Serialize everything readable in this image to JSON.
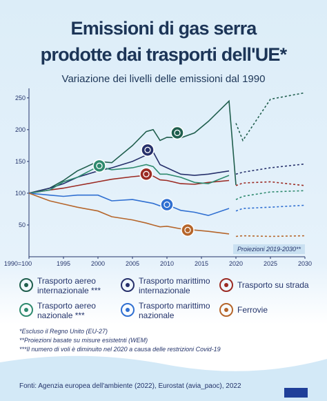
{
  "chart_data": {
    "type": "line",
    "title": [
      "Emissioni di gas serra",
      "prodotte dai trasporti dell'UE*"
    ],
    "subtitle": "Variazione dei livelli delle emissioni dal 1990",
    "x": [
      1990,
      1993,
      1995,
      1997,
      2000,
      2002,
      2005,
      2007,
      2008,
      2009,
      2010,
      2012,
      2014,
      2016,
      2019,
      2020,
      2021,
      2025,
      2030
    ],
    "xlim": [
      1990,
      2030
    ],
    "xticks": [
      {
        "value": 1990,
        "label": "1990=100"
      },
      1995,
      2000,
      2005,
      2010,
      2015,
      2020,
      2025,
      2030
    ],
    "ylim": [
      0,
      265
    ],
    "yticks": [
      50,
      100,
      150,
      200,
      250
    ],
    "projection_label": "Proiezioni 2019-2030**",
    "series": [
      {
        "name": "Trasporto aereo internazionale ***",
        "color": "#1f5e4d",
        "values": [
          100,
          108,
          120,
          135,
          150,
          148,
          175,
          197,
          200,
          183,
          188,
          187,
          195,
          213,
          245,
          113,
          null,
          null,
          null
        ],
        "projection": [
          null,
          null,
          null,
          null,
          null,
          null,
          null,
          null,
          null,
          null,
          null,
          null,
          null,
          null,
          null,
          210,
          183,
          248,
          258
        ]
      },
      {
        "name": "Trasporto marittimo internazionale",
        "color": "#26306b",
        "values": [
          100,
          108,
          115,
          125,
          135,
          140,
          150,
          160,
          165,
          145,
          140,
          130,
          128,
          130,
          135,
          null,
          null,
          null,
          null
        ],
        "projection": [
          null,
          null,
          null,
          null,
          null,
          null,
          null,
          null,
          null,
          null,
          null,
          null,
          null,
          null,
          null,
          130,
          133,
          140,
          146
        ]
      },
      {
        "name": "Trasporto su strada",
        "color": "#9b2a23",
        "values": [
          100,
          105,
          108,
          112,
          118,
          122,
          126,
          128,
          127,
          121,
          120,
          115,
          114,
          117,
          120,
          null,
          null,
          null,
          null
        ],
        "projection": [
          null,
          null,
          null,
          null,
          null,
          null,
          null,
          null,
          null,
          null,
          null,
          null,
          null,
          null,
          null,
          112,
          116,
          118,
          112
        ]
      },
      {
        "name": "Trasporto aereo nazionale ***",
        "color": "#2e8a6e",
        "values": [
          100,
          105,
          118,
          125,
          142,
          137,
          140,
          145,
          142,
          130,
          130,
          125,
          117,
          115,
          128,
          null,
          null,
          null,
          null
        ],
        "projection": [
          null,
          null,
          null,
          null,
          null,
          null,
          null,
          null,
          null,
          null,
          null,
          null,
          null,
          null,
          null,
          90,
          95,
          102,
          104
        ]
      },
      {
        "name": "Trasporto marittimo nazionale",
        "color": "#2f6fd1",
        "values": [
          100,
          97,
          95,
          97,
          97,
          88,
          90,
          86,
          84,
          80,
          82,
          73,
          70,
          65,
          76,
          null,
          null,
          null,
          null
        ],
        "projection": [
          null,
          null,
          null,
          null,
          null,
          null,
          null,
          null,
          null,
          null,
          null,
          null,
          null,
          null,
          null,
          72,
          76,
          78,
          81
        ]
      },
      {
        "name": "Ferrovie",
        "color": "#b5652a",
        "values": [
          100,
          88,
          83,
          78,
          72,
          63,
          58,
          53,
          50,
          47,
          48,
          44,
          42,
          40,
          36,
          null,
          null,
          null,
          null
        ],
        "projection": [
          null,
          null,
          null,
          null,
          null,
          null,
          null,
          null,
          null,
          null,
          null,
          null,
          null,
          null,
          null,
          32,
          33,
          32,
          33
        ]
      }
    ],
    "notes": [
      "*Escluso il Regno Unito (EU-27)",
      "**Proiezioni basate su misure esistetnti (WEM)",
      "***Il numero di voli è diminuito nel 2020 a causa delle restrizioni Covid-19"
    ],
    "source": "Fonti: Agenzia europea dell'ambiente (2022), Eurostat (avia_paoc), 2022"
  }
}
